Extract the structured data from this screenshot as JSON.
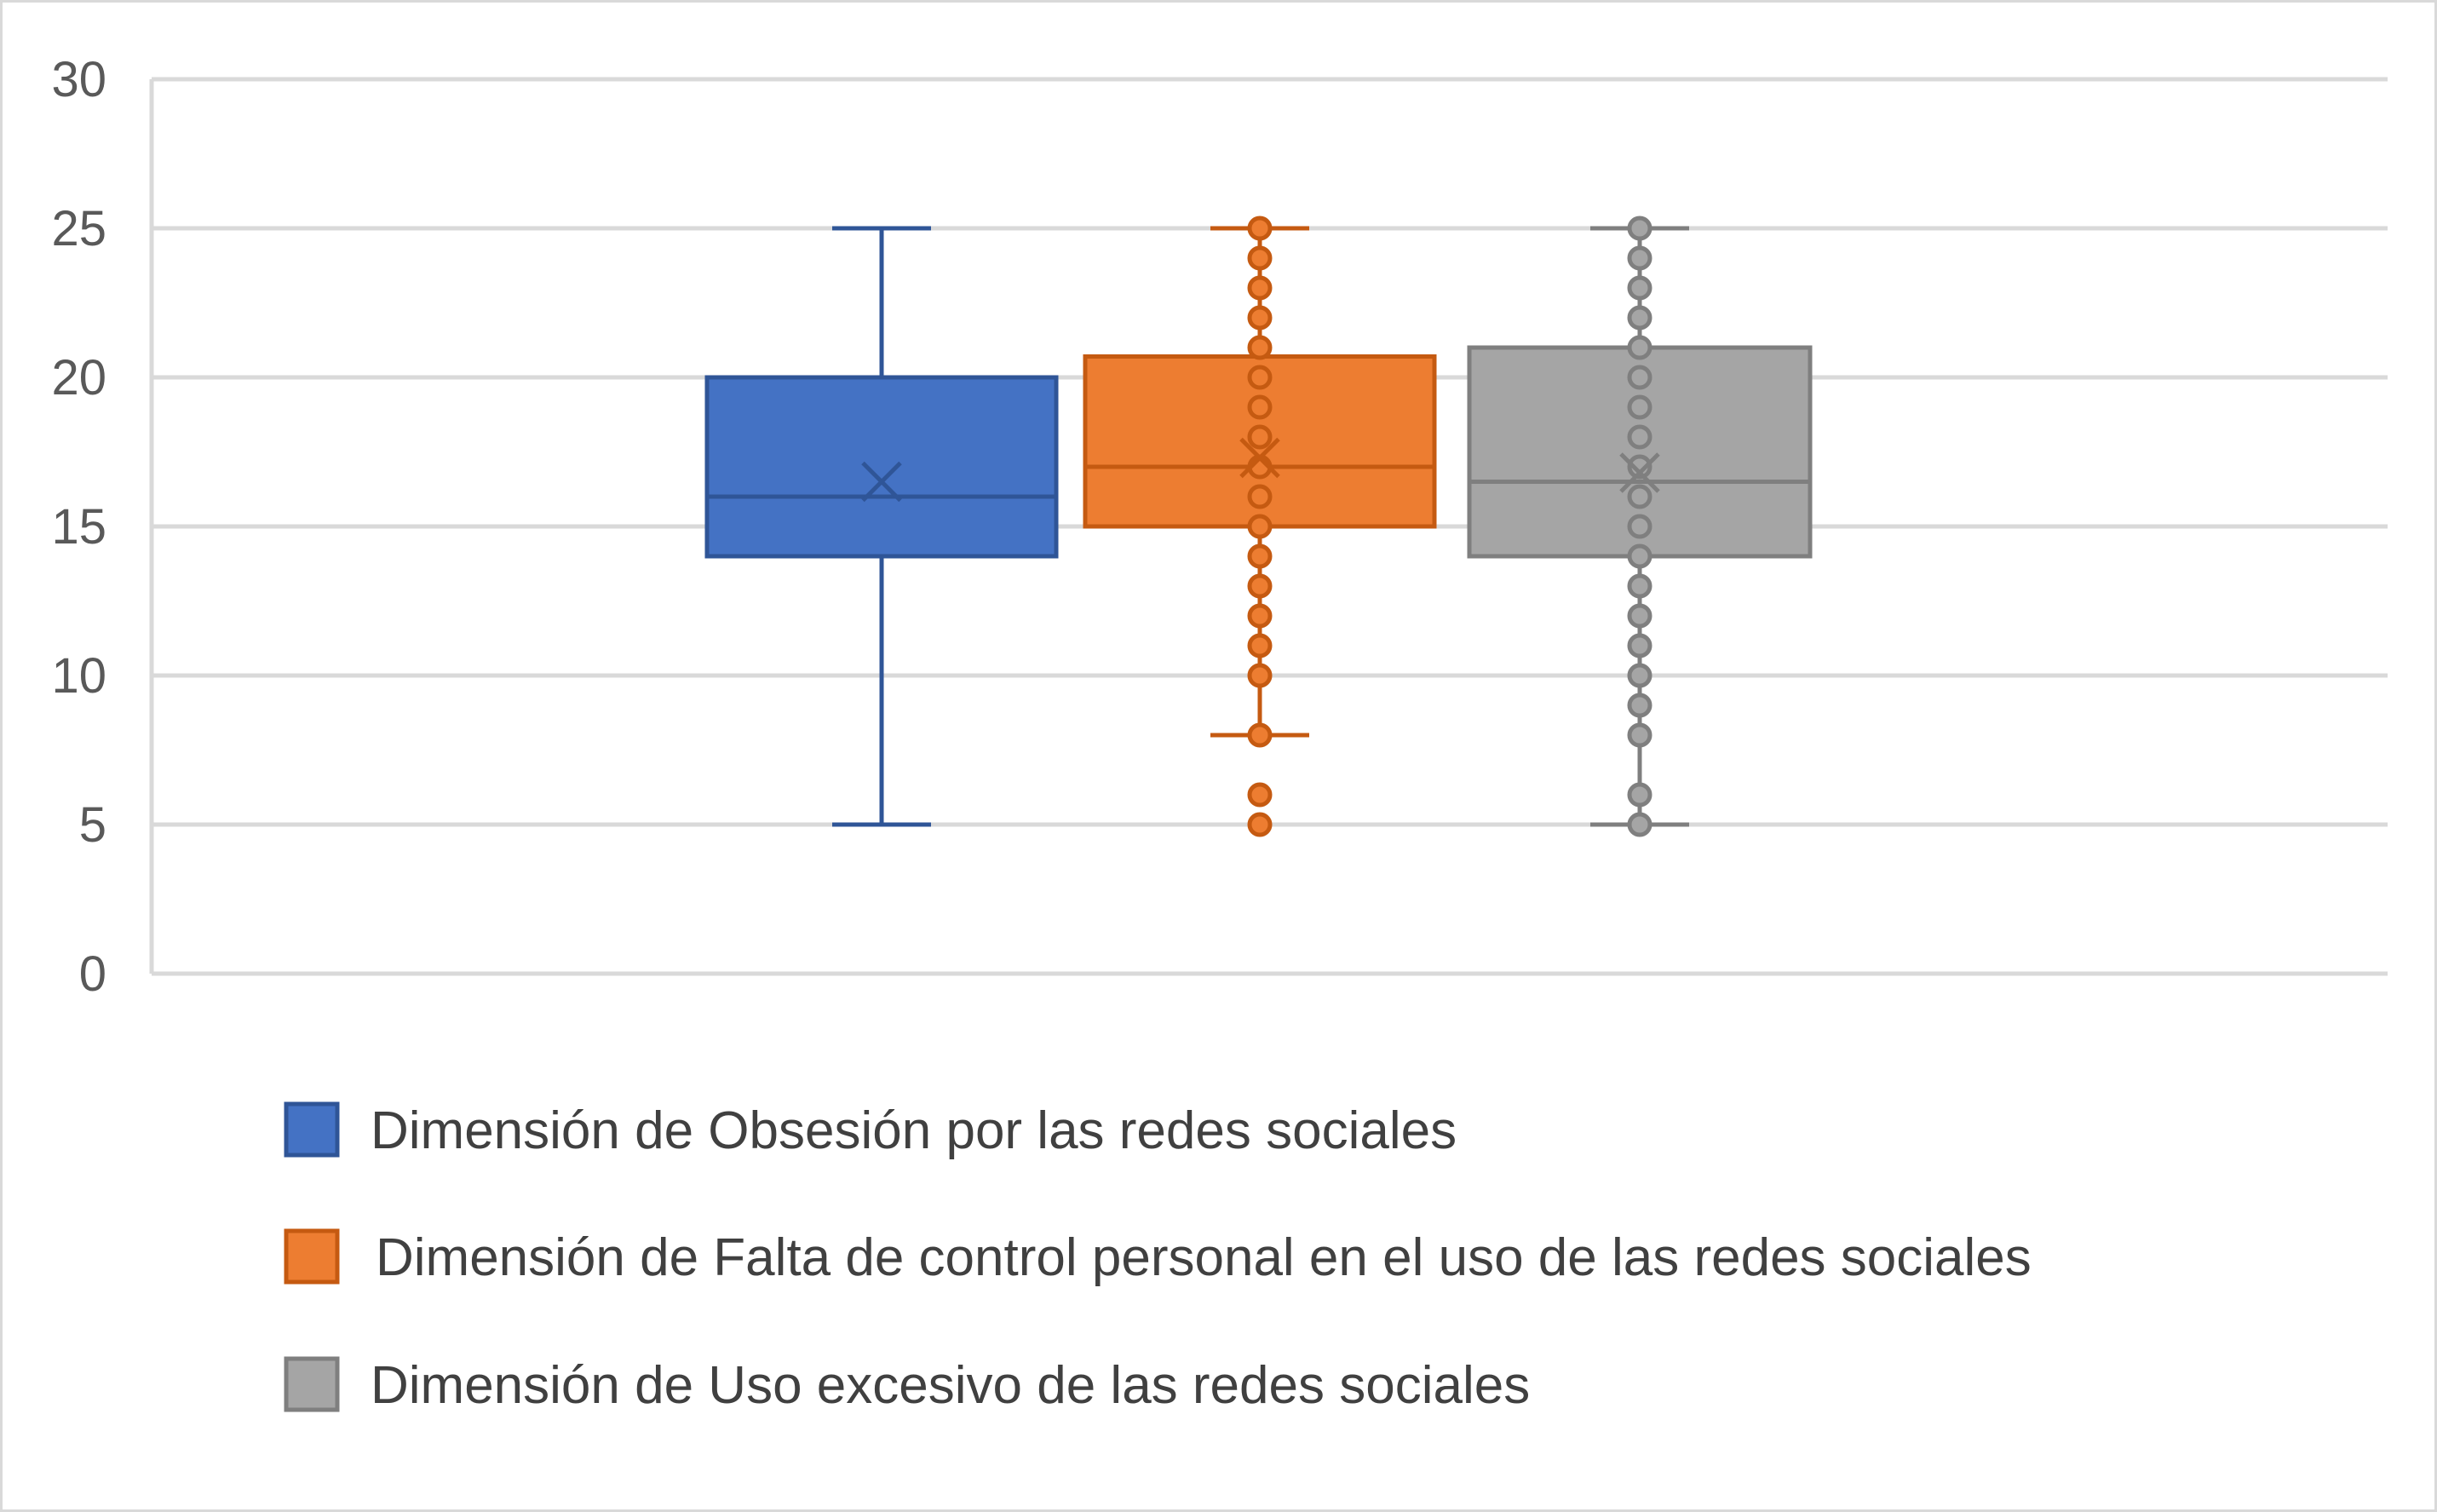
{
  "chart_data": {
    "type": "box",
    "ylim": [
      0,
      30
    ],
    "y_ticks": [
      "0",
      "5",
      "10",
      "15",
      "20",
      "25",
      "30"
    ],
    "grid": true,
    "legend_position": "bottom",
    "series": [
      {
        "name": "Dimensión de Obsesión por las redes sociales",
        "color": "#4472c4",
        "edge_color": "#2f5597",
        "min": 5,
        "q1": 14,
        "median": 16,
        "q3": 20,
        "max": 25,
        "mean": 16.5,
        "points": []
      },
      {
        "name": "Dimensión de Falta de control personal en el uso de las redes sociales",
        "color": "#ed7d31",
        "edge_color": "#c55a11",
        "min": 8,
        "q1": 15,
        "median": 17,
        "q3": 20.7,
        "max": 25,
        "mean": 17.3,
        "points": [
          5,
          6,
          8,
          10,
          11,
          12,
          13,
          14,
          15,
          16,
          17,
          18,
          19,
          20,
          21,
          22,
          23,
          24,
          25
        ]
      },
      {
        "name": "Dimensión de Uso excesivo de las redes sociales",
        "color": "#a5a5a5",
        "edge_color": "#7f7f7f",
        "min": 5,
        "q1": 14,
        "median": 16.5,
        "q3": 21,
        "max": 25,
        "mean": 16.8,
        "points": [
          5,
          6,
          8,
          9,
          10,
          11,
          12,
          13,
          14,
          15,
          16,
          17,
          18,
          19,
          20,
          21,
          22,
          23,
          24,
          25
        ]
      }
    ]
  }
}
